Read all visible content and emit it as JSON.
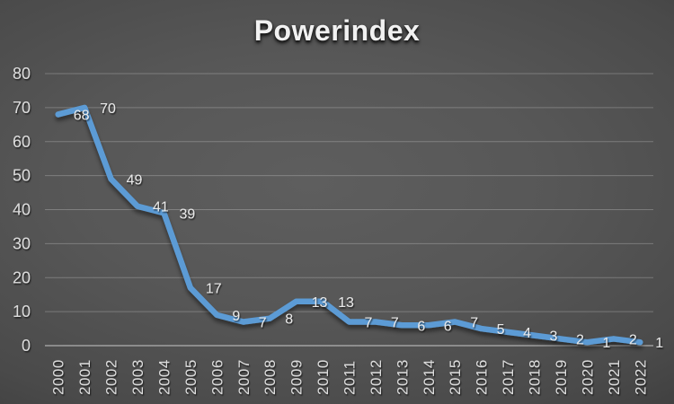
{
  "chart_data": {
    "type": "line",
    "title": "Powerindex",
    "categories": [
      "2000",
      "2001",
      "2002",
      "2003",
      "2004",
      "2005",
      "2006",
      "2007",
      "2008",
      "2009",
      "2010",
      "2011",
      "2012",
      "2013",
      "2014",
      "2015",
      "2016",
      "2017",
      "2018",
      "2019",
      "2020",
      "2021",
      "2022"
    ],
    "series": [
      {
        "name": "Powerindex",
        "values": [
          68,
          70,
          49,
          41,
          39,
          17,
          9,
          7,
          8,
          13,
          13,
          7,
          7,
          6,
          6,
          7,
          5,
          4,
          3,
          2,
          1,
          2,
          1
        ]
      }
    ],
    "data_labels": [
      68,
      70,
      49,
      41,
      39,
      17,
      9,
      7,
      8,
      13,
      13,
      7,
      7,
      6,
      6,
      7,
      5,
      4,
      3,
      2,
      1,
      2,
      1
    ],
    "xlabel": "",
    "ylabel": "",
    "ylim": [
      0,
      80
    ],
    "yticks": [
      0,
      10,
      20,
      30,
      40,
      50,
      60,
      70,
      80
    ],
    "grid": true,
    "legend": "none",
    "colors": {
      "line": "#5B9BD5",
      "title_text": "#f1f1f1",
      "axis_text": "#dcdcdc",
      "data_label_text": "#e9e9e9",
      "background_center": "#5e5e5e",
      "background_edge": "#262626"
    }
  }
}
